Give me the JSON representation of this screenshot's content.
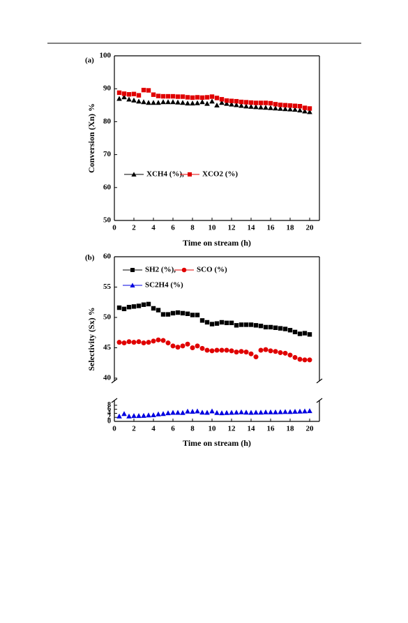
{
  "chart_data": [
    {
      "type": "scatter",
      "label": "(a)",
      "x_label": "Time on stream (h)",
      "y_label": "Conversion (Xn) %",
      "x": [
        0.5,
        1,
        1.5,
        2,
        2.5,
        3,
        3.5,
        4,
        4.5,
        5,
        5.5,
        6,
        6.5,
        7,
        7.5,
        8,
        8.5,
        9,
        9.5,
        10,
        10.5,
        11,
        11.5,
        12,
        12.5,
        13,
        13.5,
        14,
        14.5,
        15,
        15.5,
        16,
        16.5,
        17,
        17.5,
        18,
        18.5,
        19,
        19.5,
        20
      ],
      "xlim": [
        0,
        21
      ],
      "xticks": [
        0,
        2,
        4,
        6,
        8,
        10,
        12,
        14,
        16,
        18,
        20
      ],
      "ylim": [
        50,
        100
      ],
      "yticks": [
        50,
        60,
        70,
        80,
        90,
        100
      ],
      "series": [
        {
          "name": "XCH4 (%),",
          "color": "#000000",
          "marker": "triangle",
          "values": [
            87,
            87.5,
            86.8,
            86.5,
            86.2,
            86,
            85.8,
            85.8,
            85.8,
            86,
            86,
            86,
            85.9,
            85.8,
            85.6,
            85.6,
            85.7,
            86,
            85.5,
            86.2,
            85,
            85.8,
            85.5,
            85.3,
            85.1,
            84.9,
            84.7,
            84.6,
            84.5,
            84.4,
            84.3,
            84.2,
            84.1,
            84,
            83.9,
            83.8,
            83.7,
            83.5,
            83.2,
            83
          ]
        },
        {
          "name": "XCO2 (%)",
          "color": "#e00000",
          "marker": "square",
          "values": [
            88.8,
            88.5,
            88.3,
            88.4,
            88,
            89.6,
            89.5,
            88.2,
            87.8,
            87.7,
            87.7,
            87.7,
            87.6,
            87.6,
            87.4,
            87.3,
            87.4,
            87.3,
            87.4,
            87.6,
            87.2,
            86.8,
            86.4,
            86.3,
            86.2,
            86,
            85.9,
            85.8,
            85.7,
            85.7,
            85.7,
            85.6,
            85.3,
            85.1,
            85,
            84.9,
            84.8,
            84.7,
            84.2,
            84
          ]
        }
      ]
    },
    {
      "type": "scatter",
      "label": "(b)",
      "x_label": "Time on stream (h)",
      "y_label": "Selectivity (Sx) %",
      "x": [
        0.5,
        1,
        1.5,
        2,
        2.5,
        3,
        3.5,
        4,
        4.5,
        5,
        5.5,
        6,
        6.5,
        7,
        7.5,
        8,
        8.5,
        9,
        9.5,
        10,
        10.5,
        11,
        11.5,
        12,
        12.5,
        13,
        13.5,
        14,
        14.5,
        15,
        15.5,
        16,
        16.5,
        17,
        17.5,
        18,
        18.5,
        19,
        19.5,
        20
      ],
      "xlim": [
        0,
        21
      ],
      "xticks": [
        0,
        2,
        4,
        6,
        8,
        10,
        12,
        14,
        16,
        18,
        20
      ],
      "ylim": [
        40,
        60
      ],
      "yticks": [
        40,
        45,
        50,
        55,
        60
      ],
      "lower_ylim": [
        0,
        9
      ],
      "lower_yticks": [
        0,
        2,
        4,
        6,
        8
      ],
      "series": [
        {
          "name": "SH2 (%),",
          "color": "#000000",
          "marker": "square",
          "segment": "upper",
          "values": [
            51.6,
            51.4,
            51.7,
            51.8,
            51.9,
            52.1,
            52.2,
            51.5,
            51.2,
            50.5,
            50.5,
            50.7,
            50.8,
            50.7,
            50.6,
            50.4,
            50.4,
            49.5,
            49.2,
            48.9,
            49,
            49.2,
            49.1,
            49.1,
            48.7,
            48.8,
            48.8,
            48.8,
            48.7,
            48.6,
            48.4,
            48.4,
            48.3,
            48.2,
            48.1,
            47.9,
            47.6,
            47.3,
            47.4,
            47.2
          ]
        },
        {
          "name": "SCO (%)",
          "color": "#e00000",
          "marker": "circle",
          "segment": "upper",
          "values": [
            45.9,
            45.8,
            46,
            45.9,
            46,
            45.8,
            45.9,
            46.1,
            46.3,
            46.2,
            45.8,
            45.3,
            45.1,
            45.3,
            45.6,
            45,
            45.3,
            44.9,
            44.6,
            44.5,
            44.6,
            44.6,
            44.6,
            44.5,
            44.3,
            44.4,
            44.3,
            44,
            43.5,
            44.6,
            44.7,
            44.5,
            44.4,
            44.2,
            44.1,
            43.8,
            43.4,
            43.1,
            43,
            43
          ]
        },
        {
          "name": "SC2H4 (%)",
          "color": "#0000e0",
          "marker": "triangle",
          "segment": "lower",
          "values": [
            2.6,
            3.8,
            2.6,
            2.8,
            2.8,
            2.9,
            3.1,
            3.2,
            3.6,
            3.8,
            4.2,
            4.4,
            4.4,
            4.3,
            5,
            4.9,
            5.1,
            4.5,
            4.4,
            5.1,
            4.3,
            4.2,
            4.3,
            4.4,
            4.5,
            4.6,
            4.5,
            4.4,
            4.5,
            4.5,
            4.6,
            4.6,
            4.6,
            4.7,
            4.8,
            4.8,
            4.9,
            5,
            5.1,
            5.2
          ]
        }
      ]
    }
  ]
}
